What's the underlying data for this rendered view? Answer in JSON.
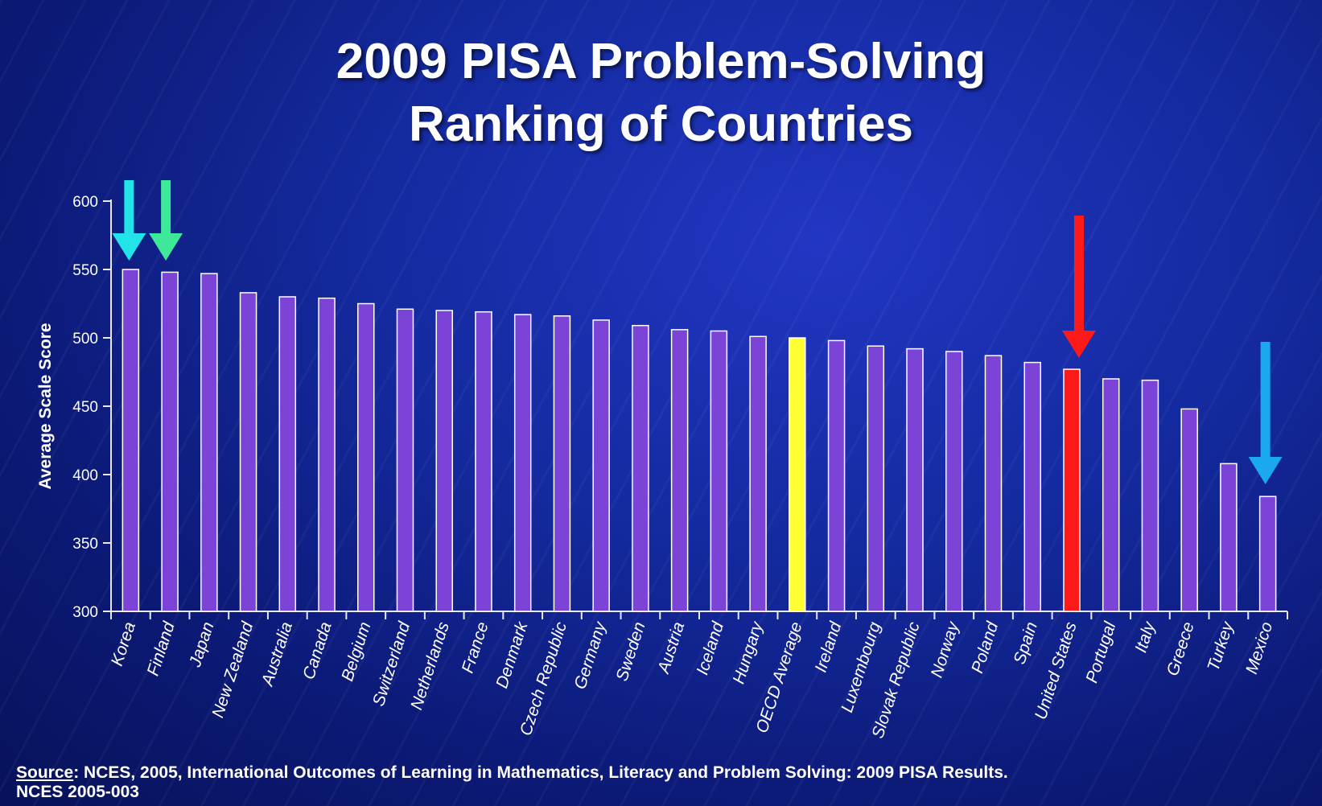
{
  "title_lines": [
    "2009 PISA Problem-Solving",
    "Ranking of Countries"
  ],
  "source": {
    "label": "Source",
    "text": ": NCES, 2005, International Outcomes of Learning in Mathematics, Literacy and Problem Solving: 2009 PISA Results.",
    "line2": "NCES 2005-003"
  },
  "colors": {
    "bar": "#7b44d6",
    "oecd_average": "#ffff33",
    "united_states": "#ff1a1a",
    "axis": "#e8e8ff",
    "arrow_korea": "#22e4e8",
    "arrow_finland": "#3ee89a",
    "arrow_us": "#ff1a1a",
    "arrow_mexico": "#1aa8ee"
  },
  "chart_data": {
    "type": "bar",
    "title": "2009 PISA Problem-Solving Ranking of Countries",
    "xlabel": "",
    "ylabel": "Average Scale Score",
    "ylim": [
      300,
      600
    ],
    "yticks": [
      300,
      350,
      400,
      450,
      500,
      550,
      600
    ],
    "grid": false,
    "legend": "none",
    "categories": [
      "Korea",
      "Finland",
      "Japan",
      "New Zealand",
      "Australia",
      "Canada",
      "Belgium",
      "Switzerland",
      "Netherlands",
      "France",
      "Denmark",
      "Czech Republic",
      "Germany",
      "Sweden",
      "Austria",
      "Iceland",
      "Hungary",
      "OECD Average",
      "Ireland",
      "Luxembourg",
      "Slovak Republic",
      "Norway",
      "Poland",
      "Spain",
      "United States",
      "Portugal",
      "Italy",
      "Greece",
      "Turkey",
      "Mexico"
    ],
    "values": [
      550,
      548,
      547,
      533,
      530,
      529,
      525,
      521,
      520,
      519,
      517,
      516,
      513,
      509,
      506,
      505,
      501,
      500,
      498,
      494,
      492,
      490,
      487,
      482,
      477,
      470,
      469,
      448,
      408,
      384
    ],
    "highlighted": {
      "OECD Average": "yellow",
      "United States": "red"
    },
    "arrows": [
      {
        "target": "Korea",
        "color": "cyan"
      },
      {
        "target": "Finland",
        "color": "green"
      },
      {
        "target": "United States",
        "color": "red"
      },
      {
        "target": "Mexico",
        "color": "blue"
      }
    ]
  }
}
